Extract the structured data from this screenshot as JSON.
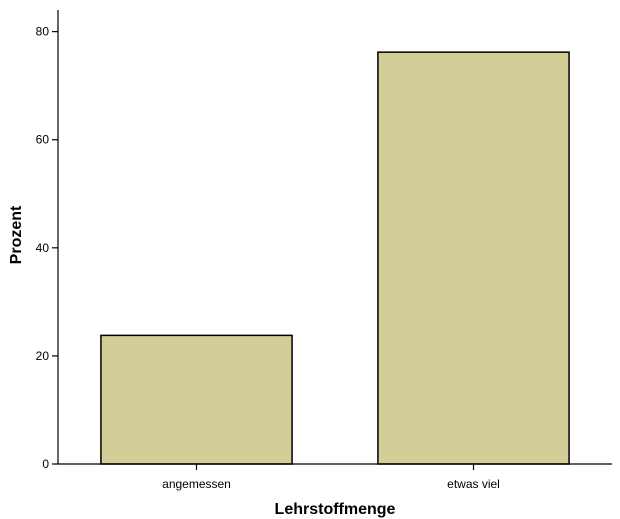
{
  "chart_data": {
    "type": "bar",
    "categories": [
      "angemessen",
      "etwas viel"
    ],
    "values": [
      23.8,
      76.2
    ],
    "xlabel": "Lehrstoffmenge",
    "ylabel": "Prozent",
    "ylim": [
      0,
      84
    ],
    "yticks": [
      0,
      20,
      40,
      60,
      80
    ],
    "grid": false,
    "colors": {
      "bar_fill": "#D3CE98",
      "bar_stroke": "#000000",
      "axis": "#000000"
    }
  }
}
